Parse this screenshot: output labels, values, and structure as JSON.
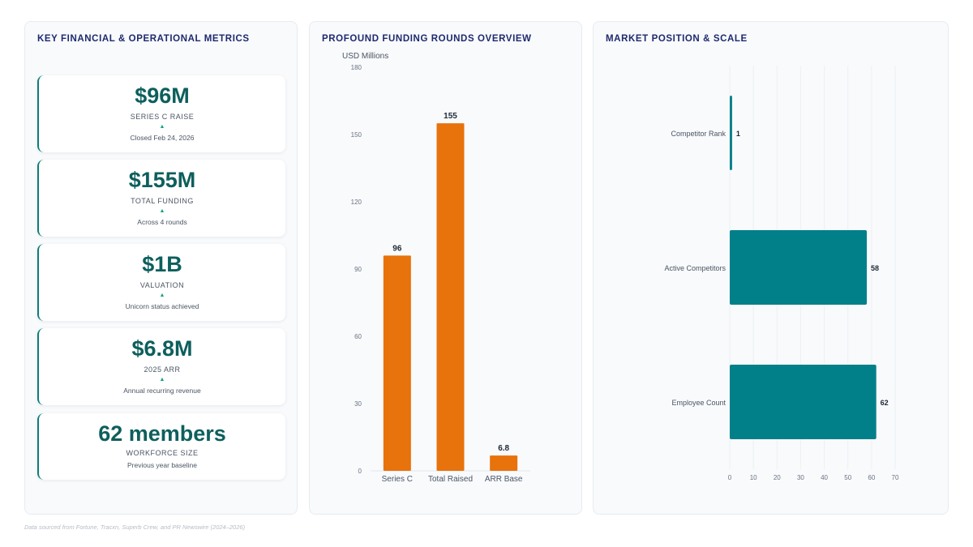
{
  "metrics_panel": {
    "title": "KEY FINANCIAL & OPERATIONAL METRICS",
    "cards": [
      {
        "value": "$96M",
        "label": "SERIES C RAISE",
        "arrow": "▲",
        "sub": "Closed Feb 24, 2026"
      },
      {
        "value": "$155M",
        "label": "TOTAL FUNDING",
        "arrow": "▲",
        "sub": "Across 4 rounds"
      },
      {
        "value": "$1B",
        "label": "VALUATION",
        "arrow": "▲",
        "sub": "Unicorn status achieved"
      },
      {
        "value": "$6.8M",
        "label": "2025 ARR",
        "arrow": "▲",
        "sub": "Annual recurring revenue"
      },
      {
        "value": "62 members",
        "label": "WORKFORCE SIZE",
        "arrow": "",
        "sub": "Previous year baseline"
      }
    ]
  },
  "funding_panel": {
    "title": "PROFOUND FUNDING ROUNDS OVERVIEW"
  },
  "market_panel": {
    "title": "MARKET POSITION & SCALE"
  },
  "footnote": "Data sourced from Fortune, Tracxn, Superb Crew, and PR Newswire (2024–2026)",
  "colors": {
    "accent_teal": "#0b7d78",
    "bar_orange": "#e8720c",
    "bar_teal": "#02808a",
    "title_navy": "#1e2a6e"
  },
  "chart_data": [
    {
      "type": "bar",
      "orientation": "vertical",
      "title": "PROFOUND FUNDING ROUNDS OVERVIEW",
      "ylabel": "USD Millions",
      "categories": [
        "Series C",
        "Total Raised",
        "ARR Base"
      ],
      "values": [
        96,
        155,
        6.8
      ],
      "data_labels": [
        "96",
        "155",
        "6.8"
      ],
      "ylim": [
        0,
        180
      ],
      "yticks": [
        0,
        30,
        60,
        90,
        120,
        150,
        180
      ],
      "color": "#e8720c",
      "grid": false
    },
    {
      "type": "bar",
      "orientation": "horizontal",
      "title": "MARKET POSITION & SCALE",
      "categories": [
        "Competitor Rank",
        "Active Competitors",
        "Employee Count"
      ],
      "values": [
        1,
        58,
        62
      ],
      "data_labels": [
        "1",
        "58",
        "62"
      ],
      "xlim": [
        0,
        70
      ],
      "xticks": [
        0,
        10,
        20,
        30,
        40,
        50,
        60,
        70
      ],
      "color": "#02808a",
      "grid": true
    }
  ]
}
